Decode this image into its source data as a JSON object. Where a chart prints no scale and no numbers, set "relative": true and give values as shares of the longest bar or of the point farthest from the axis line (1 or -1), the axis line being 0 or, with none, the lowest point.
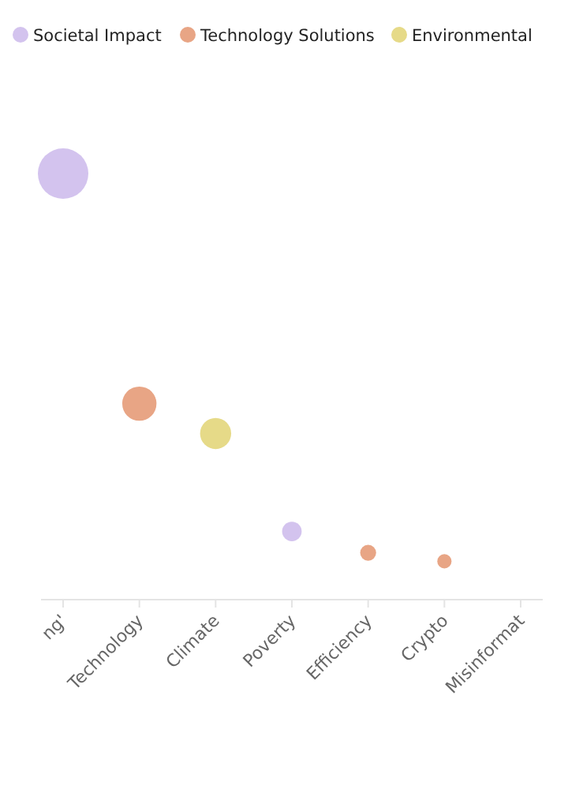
{
  "chart_data": {
    "type": "bubble",
    "relative": true,
    "legend": "top",
    "categories": [
      "ng'",
      "Technology",
      "Climate",
      "Poverty",
      "Efficiency",
      "Crypto",
      "Misinformat"
    ],
    "series": [
      {
        "name": "Societal Impact",
        "color": "#d3c3ee",
        "values": [
          1,
          null,
          null,
          0.16,
          null,
          null,
          null
        ],
        "sizes": [
          1,
          null,
          null,
          0.15,
          null,
          null,
          null
        ]
      },
      {
        "name": "Technology Solutions",
        "color": "#e8a585",
        "values": [
          null,
          0.46,
          null,
          null,
          0.11,
          0.09,
          null
        ],
        "sizes": [
          null,
          0.46,
          null,
          null,
          0.1,
          0.08,
          null
        ]
      },
      {
        "name": "Environmental",
        "color": "#e6da88",
        "values": [
          null,
          null,
          0.39,
          null,
          null,
          null,
          null
        ],
        "sizes": [
          null,
          null,
          0.38,
          null,
          null,
          null,
          null
        ]
      }
    ]
  }
}
